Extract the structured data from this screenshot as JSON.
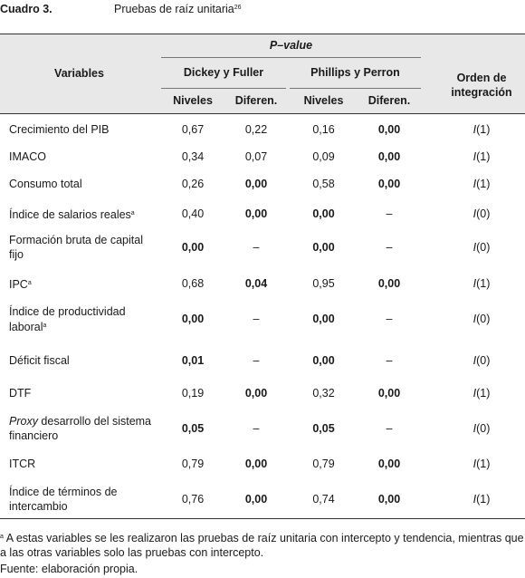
{
  "title": {
    "label": "Cuadro 3.",
    "text": "Pruebas de raíz unitaria",
    "note": "26"
  },
  "table": {
    "header": {
      "variables": "Variables",
      "pvalue": "P–value",
      "groups": [
        "Dickey y Fuller",
        "Phillips y Perron"
      ],
      "sub": [
        "Niveles",
        "Diferen.",
        "Niveles",
        "Diferen."
      ],
      "order": "Orden de integración"
    },
    "rows": [
      {
        "variable": "Crecimiento del PIB",
        "values": [
          "0,67",
          "0,22",
          "0,16",
          "0,00"
        ],
        "order": "I(1)"
      },
      {
        "variable": "IMACO",
        "values": [
          "0,34",
          "0,07",
          "0,09",
          "0,00"
        ],
        "order": "I(1)"
      },
      {
        "variable": "Consumo total",
        "values": [
          "0,26",
          "0,00",
          "0,58",
          "0,00"
        ],
        "order": "I(1)"
      },
      {
        "variable": "Índice de salarios reales",
        "note": "a",
        "values": [
          "0,40",
          "0,00",
          "0,00",
          "–"
        ],
        "order": "I(0)"
      },
      {
        "variable": "Formación bruta de capital fijo",
        "values": [
          "0,00",
          "–",
          "0,00",
          "–"
        ],
        "order": "I(0)"
      },
      {
        "variable": "IPC",
        "note": "a",
        "values": [
          "0,68",
          "0,04",
          "0,95",
          "0,00"
        ],
        "order": "I(1)"
      },
      {
        "variable": "Índice de productividad laboral",
        "note": "a",
        "values": [
          "0,00",
          "–",
          "0,00",
          "–"
        ],
        "order": "I(0)"
      },
      {
        "variable": "Déficit fiscal",
        "values": [
          "0,01",
          "–",
          "0,00",
          "–"
        ],
        "order": "I(0)"
      },
      {
        "variable": "DTF",
        "values": [
          "0,19",
          "0,00",
          "0,32",
          "0,00"
        ],
        "order": "I(1)"
      },
      {
        "variable": "Proxy desarrollo del sistema financiero",
        "values": [
          "0,05",
          "–",
          "0,05",
          "–"
        ],
        "order": "I(0)"
      },
      {
        "variable": "ITCR",
        "values": [
          "0,79",
          "0,00",
          "0,79",
          "0,00"
        ],
        "order": "I(1)"
      },
      {
        "variable": "Índice de términos de intercambio",
        "values": [
          "0,76",
          "0,00",
          "0,74",
          "0,00"
        ],
        "order": "I(1)"
      }
    ]
  },
  "footnote": {
    "mark": "a",
    "text": "A estas variables se les realizaron las pruebas de raíz unitaria con intercepto y tendencia, mientras que a las otras variables solo las pruebas con intercepto."
  },
  "source": "Fuente: elaboración propia."
}
